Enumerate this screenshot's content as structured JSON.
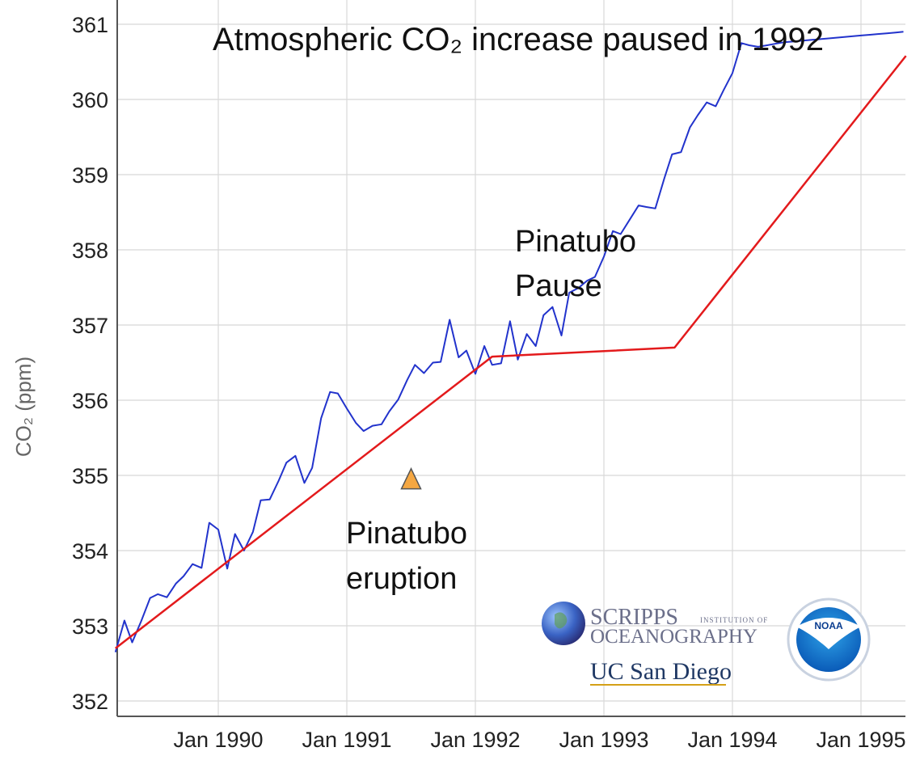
{
  "chart_data": {
    "type": "line",
    "title": "Atmospheric CO₂ increase paused in 1992",
    "ylabel": "CO₂ (ppm)",
    "xlabel": "",
    "ylim": [
      352,
      361
    ],
    "xlim": [
      1989.2,
      1995.35
    ],
    "yticks": [
      352,
      353,
      354,
      355,
      356,
      357,
      358,
      359,
      360,
      361
    ],
    "xticks": [
      {
        "value": 1990.0,
        "label": "Jan 1990"
      },
      {
        "value": 1991.0,
        "label": "Jan 1991"
      },
      {
        "value": 1992.0,
        "label": "Jan 1992"
      },
      {
        "value": 1993.0,
        "label": "Jan 1993"
      },
      {
        "value": 1994.0,
        "label": "Jan 1994"
      },
      {
        "value": 1995.0,
        "label": "Jan 1995"
      }
    ],
    "grid": true,
    "series": [
      {
        "name": "",
        "color": "#2233cc",
        "x": [
          1989.2,
          1989.27,
          1989.33,
          1989.4,
          1989.47,
          1989.53,
          1989.6,
          1989.67,
          1989.73,
          1989.8,
          1989.87,
          1989.93,
          1990.0,
          1990.07,
          1990.13,
          1990.2,
          1990.27,
          1990.33,
          1990.4,
          1990.47,
          1990.53,
          1990.6,
          1990.67,
          1990.73,
          1990.8,
          1990.87,
          1990.93,
          1991.0,
          1991.07,
          1991.13,
          1991.2,
          1991.27,
          1991.33,
          1991.4,
          1991.47,
          1991.53,
          1991.6,
          1991.67,
          1991.73,
          1991.8,
          1991.87,
          1991.93,
          1992.0,
          1992.07,
          1992.13,
          1992.2,
          1992.27,
          1992.33,
          1992.4,
          1992.47,
          1992.53,
          1992.6,
          1992.67,
          1992.73,
          1992.8,
          1992.87,
          1992.93,
          1993.0,
          1993.07,
          1993.13,
          1993.2,
          1993.27,
          1993.33,
          1993.4,
          1993.47,
          1993.53,
          1993.6,
          1993.67,
          1993.73,
          1993.8,
          1993.87,
          1993.93,
          1994.0,
          1994.07,
          1994.13,
          1994.2,
          1994.27,
          1994.33,
          1994.4,
          1994.47,
          1994.53,
          1994.6,
          1994.67,
          1994.73,
          1994.8,
          1994.87,
          1994.93,
          1995.0,
          1995.07,
          1995.13,
          1995.2,
          1995.27,
          1995.33
        ],
        "y": [
          352.65,
          353.07,
          352.78,
          353.06,
          353.37,
          353.42,
          353.38,
          353.56,
          353.66,
          353.82,
          353.77,
          354.37,
          354.28,
          353.76,
          354.22,
          354.0,
          354.25,
          354.67,
          354.68,
          354.93,
          355.17,
          355.26,
          354.9,
          355.1,
          355.76,
          356.11,
          356.09,
          355.89,
          355.7,
          355.59,
          355.66,
          355.68,
          355.85,
          356.01,
          356.27,
          356.47,
          356.36,
          356.5,
          356.51,
          357.07,
          356.57,
          356.66,
          356.35,
          356.72,
          356.47,
          356.49,
          357.05,
          356.54,
          356.88,
          356.72,
          357.13,
          357.24,
          356.86,
          357.43,
          357.49,
          357.59,
          357.64,
          357.91,
          358.25,
          358.21,
          358.4,
          358.59,
          358.57,
          358.55,
          358.95,
          359.27,
          359.3,
          359.63,
          359.79,
          359.96,
          359.91,
          360.12,
          360.35,
          360.75,
          360.72,
          360.7,
          360.72,
          360.74,
          360.76,
          360.77,
          360.78,
          360.79,
          360.8,
          360.81,
          360.82,
          360.83,
          360.84,
          360.85,
          360.86,
          360.87,
          360.88,
          360.89,
          360.9
        ]
      },
      {
        "name": "",
        "color": "#e31a1c",
        "x": [
          1989.2,
          1992.13,
          1993.55,
          1995.35
        ],
        "y": [
          352.7,
          356.58,
          356.7,
          360.58
        ]
      }
    ],
    "annotations": [
      {
        "text_lines": [
          "Pinatubo",
          "eruption"
        ],
        "marker": "triangle",
        "marker_color": "#f5a742",
        "marker_x": 1991.5,
        "marker_y": 354.95
      },
      {
        "text_lines": [
          "Pinatubo",
          "Pause"
        ]
      }
    ]
  },
  "logos": {
    "scripps_line1": "SCRIPPS",
    "scripps_sub": "INSTITUTION OF",
    "scripps_line2": "OCEANOGRAPHY",
    "ucsd": "UC San Diego",
    "noaa": "NOAA"
  }
}
